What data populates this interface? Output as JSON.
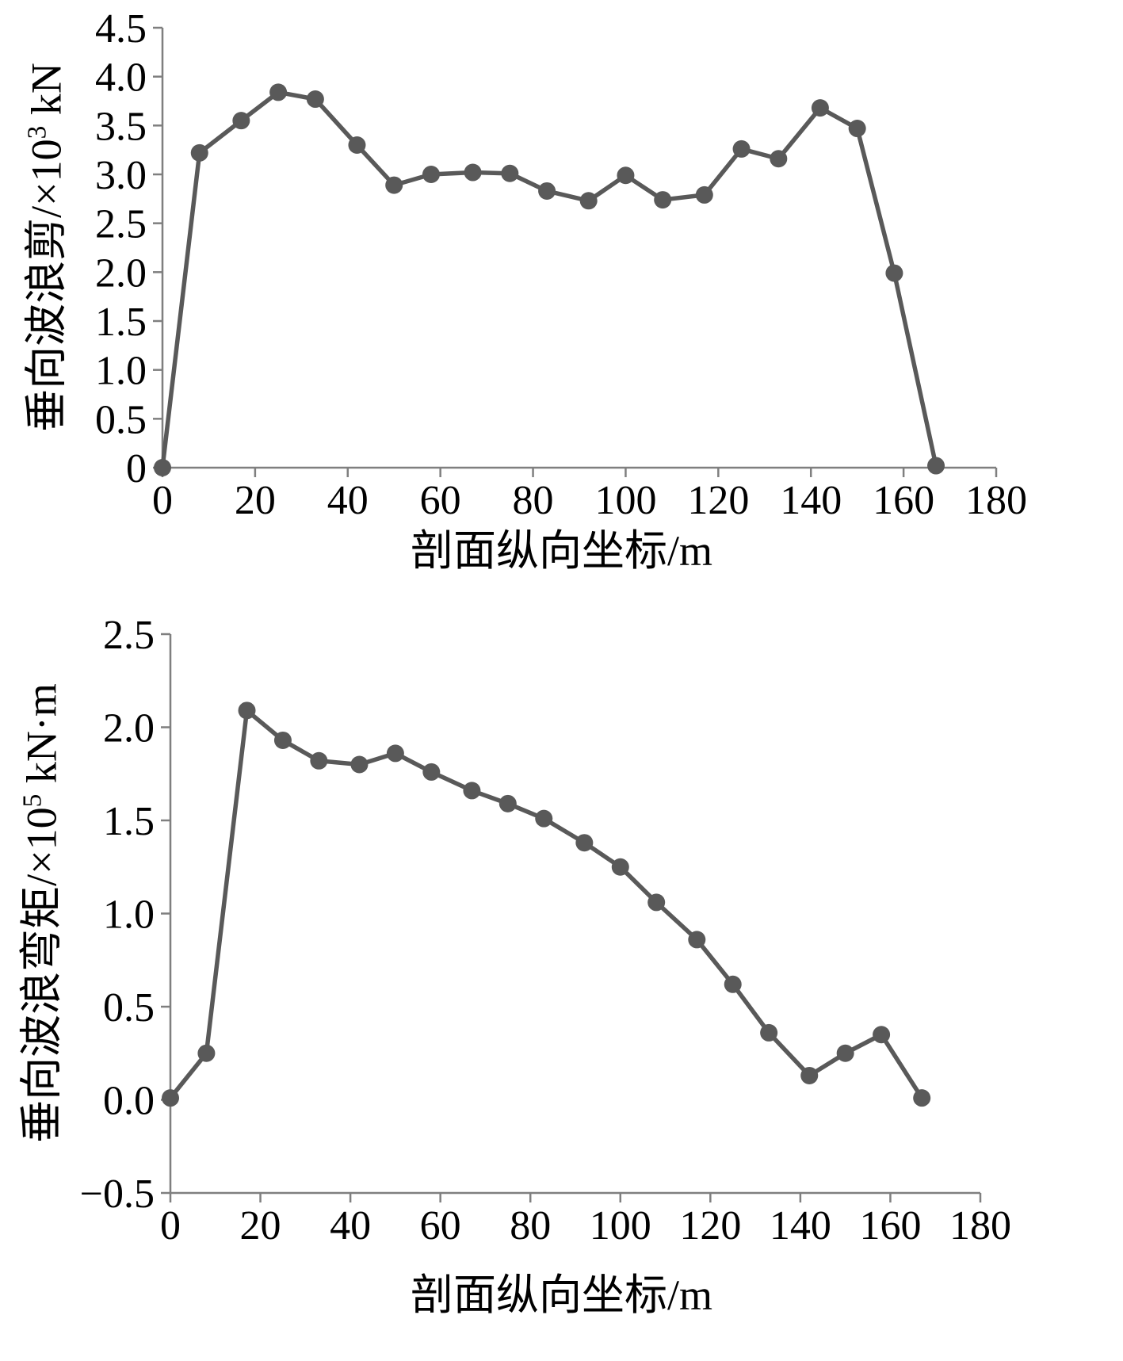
{
  "style": {
    "series_color": "#595959",
    "axis_color": "#7f7f7f",
    "text_color": "#000000",
    "marker_radius": 11,
    "line_width": 5.5,
    "axis_width": 2.5,
    "background": "#ffffff"
  },
  "chart_data": [
    {
      "id": "vertical-wave-shear",
      "type": "line",
      "title": "",
      "ylabel_pre": "垂向波浪剪/×10",
      "ylabel_sup": "3",
      "ylabel_post": " kN",
      "xlabel": "剖面纵向坐标/m",
      "xlim": [
        0,
        180
      ],
      "ylim": [
        0,
        4.5
      ],
      "grid": false,
      "legend": "none",
      "xtick_values": [
        0,
        20,
        40,
        60,
        80,
        100,
        120,
        140,
        160,
        180
      ],
      "xtick_labels": [
        "0",
        "20",
        "40",
        "60",
        "80",
        "100",
        "120",
        "140",
        "160",
        "180"
      ],
      "ytick_values": [
        0,
        0.5,
        1.0,
        1.5,
        2.0,
        2.5,
        3.0,
        3.5,
        4.0,
        4.5
      ],
      "ytick_labels": [
        "0",
        "0.5",
        "1.0",
        "1.5",
        "2.0",
        "2.5",
        "3.0",
        "3.5",
        "4.0",
        "4.5"
      ],
      "x": [
        0,
        8,
        17,
        25,
        33,
        42,
        50,
        58,
        67,
        75,
        83,
        92,
        100,
        108,
        117,
        125,
        133,
        142,
        150,
        158,
        167
      ],
      "y": [
        0,
        3.22,
        3.55,
        3.84,
        3.77,
        3.3,
        2.89,
        3.0,
        3.02,
        3.01,
        2.83,
        2.73,
        2.99,
        2.74,
        2.79,
        3.26,
        3.16,
        3.68,
        3.47,
        1.99,
        0.02
      ]
    },
    {
      "id": "vertical-wave-bending-moment",
      "type": "line",
      "title": "",
      "ylabel_pre": "垂向波浪弯矩/×10",
      "ylabel_sup": "5",
      "ylabel_post": " kN·m",
      "xlabel": "剖面纵向坐标/m",
      "xlim": [
        0,
        180
      ],
      "ylim": [
        -0.5,
        2.5
      ],
      "grid": false,
      "legend": "none",
      "xtick_values": [
        0,
        20,
        40,
        60,
        80,
        100,
        120,
        140,
        160,
        180
      ],
      "xtick_labels": [
        "0",
        "20",
        "40",
        "60",
        "80",
        "100",
        "120",
        "140",
        "160",
        "180"
      ],
      "ytick_values": [
        -0.5,
        0,
        0.5,
        1.0,
        1.5,
        2.0,
        2.5
      ],
      "ytick_labels": [
        "−0.5",
        "0.0",
        "0.5",
        "1.0",
        "1.5",
        "2.0",
        "2.5"
      ],
      "x": [
        0,
        8,
        17,
        25,
        33,
        42,
        50,
        58,
        67,
        75,
        83,
        92,
        100,
        108,
        117,
        125,
        133,
        142,
        150,
        158,
        167
      ],
      "y": [
        0.01,
        0.25,
        2.09,
        1.93,
        1.82,
        1.8,
        1.86,
        1.76,
        1.66,
        1.59,
        1.51,
        1.38,
        1.25,
        1.06,
        0.86,
        0.62,
        0.36,
        0.13,
        0.25,
        0.35,
        0.01
      ]
    }
  ]
}
